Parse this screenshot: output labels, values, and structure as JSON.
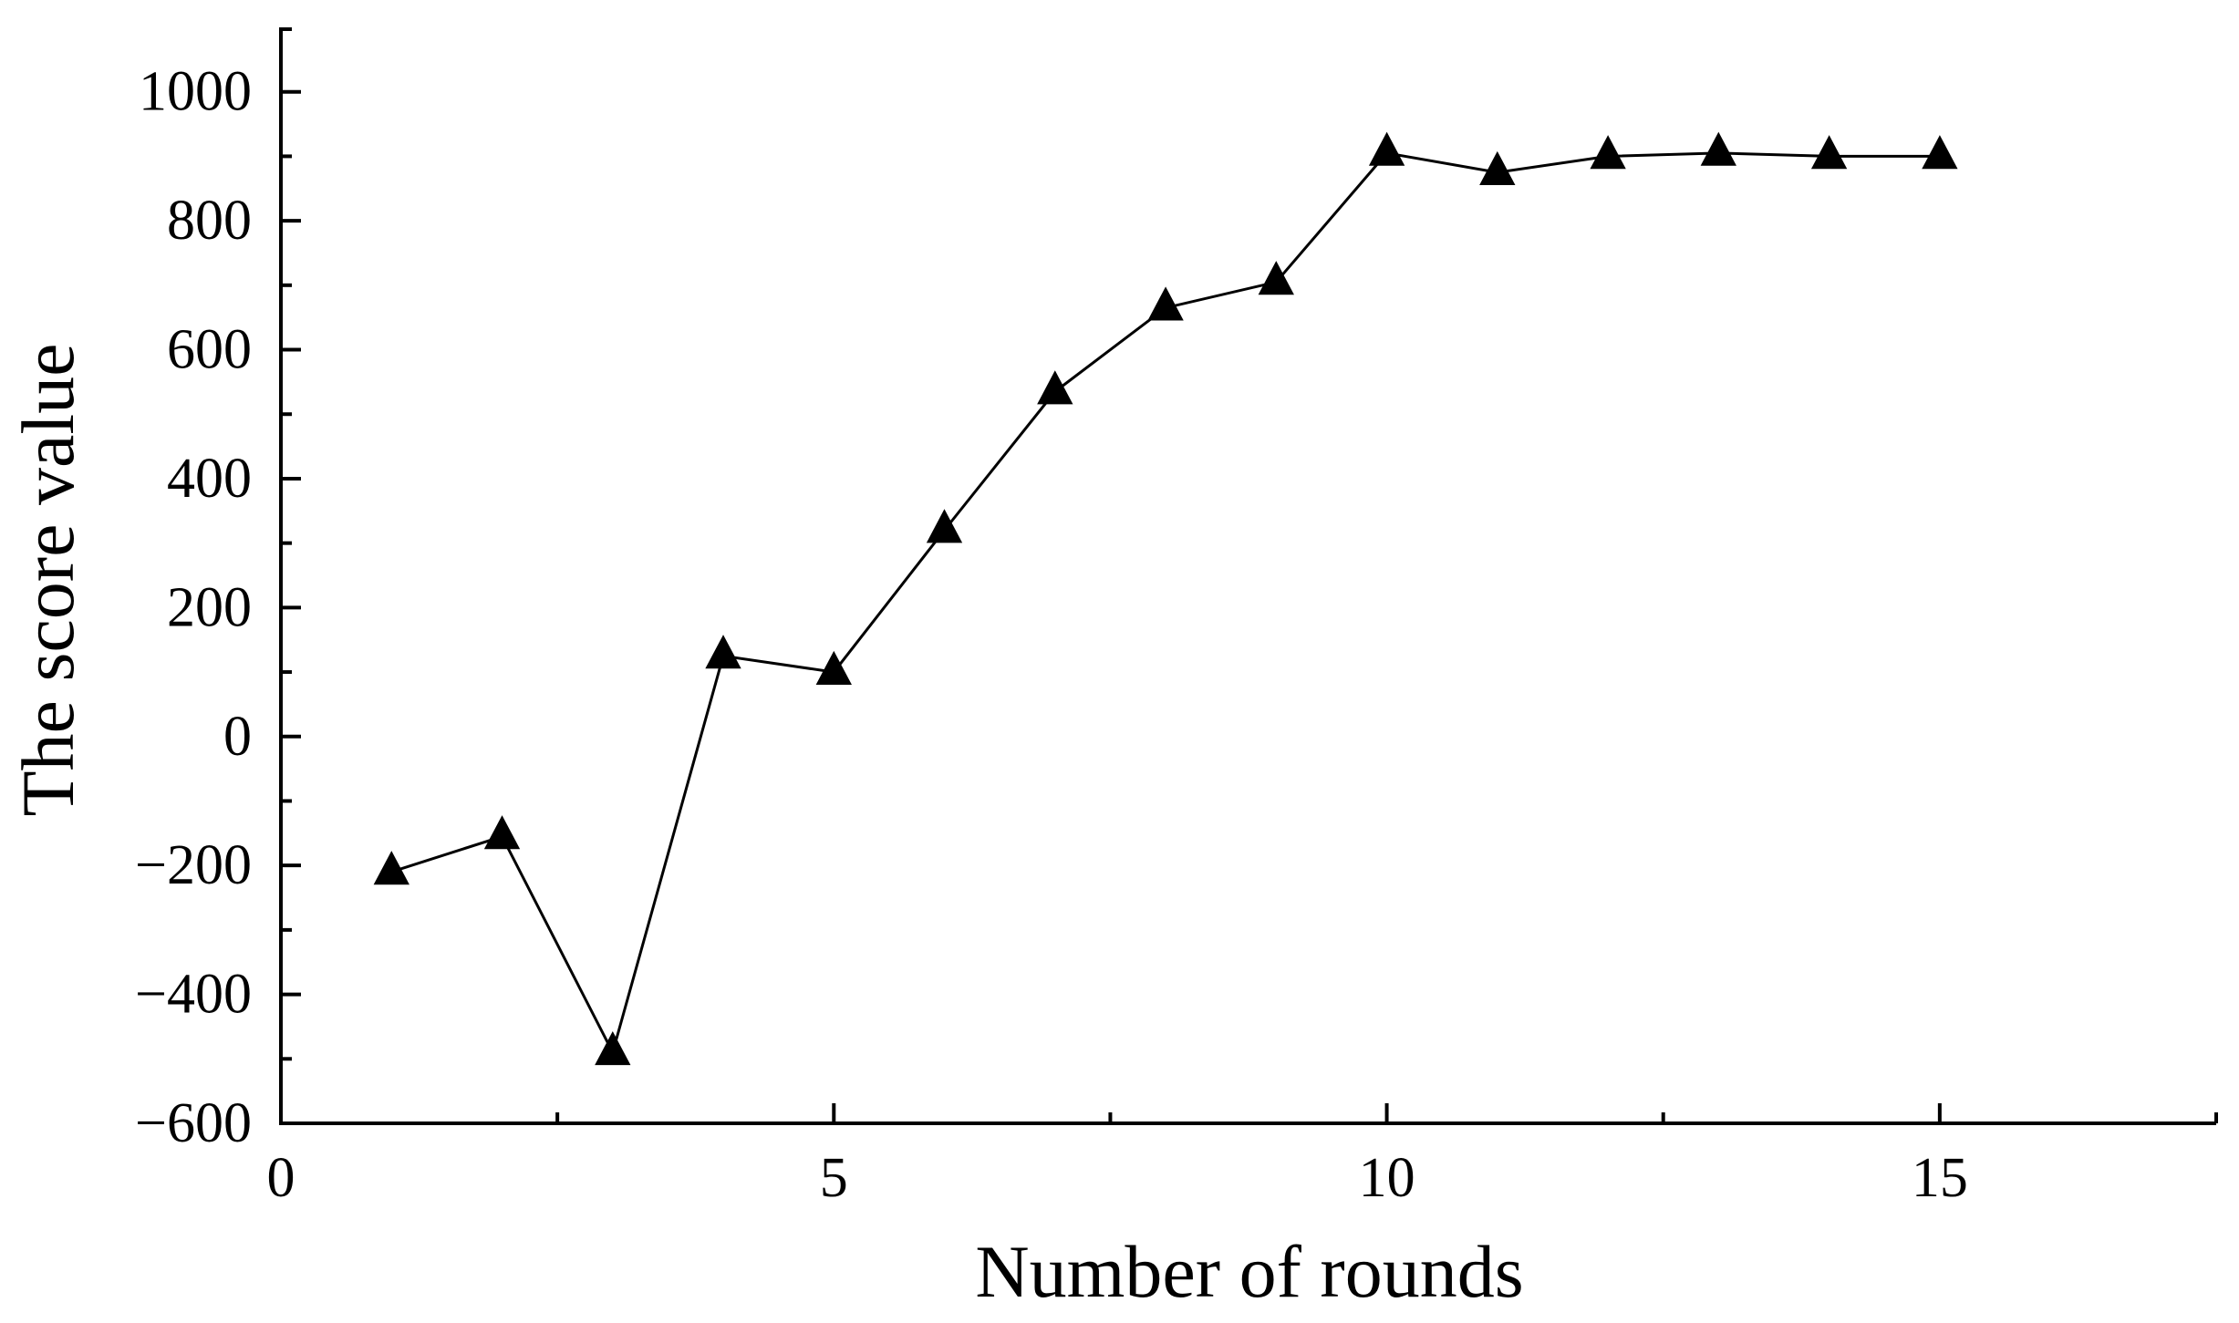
{
  "chart_data": {
    "type": "line",
    "title": "",
    "xlabel": "Number of rounds",
    "ylabel": "The score value",
    "xlim": [
      0,
      17.5
    ],
    "ylim": [
      -600,
      1100
    ],
    "x_ticks": [
      0,
      5,
      10,
      15
    ],
    "x_minor_ticks": [
      2.5,
      7.5,
      12.5,
      17.5
    ],
    "y_ticks": [
      -600,
      -400,
      -200,
      0,
      200,
      400,
      600,
      800,
      1000
    ],
    "y_minor_ticks": [
      -500,
      -300,
      -100,
      100,
      300,
      500,
      700,
      900
    ],
    "grid": false,
    "legend": "none",
    "marker": "triangle",
    "color": "#000000",
    "series": [
      {
        "x": [
          1,
          2,
          3,
          4,
          5,
          6,
          7,
          8,
          9,
          10,
          11,
          12,
          13,
          14,
          15
        ],
        "values": [
          -210,
          -155,
          -490,
          125,
          100,
          320,
          535,
          665,
          705,
          905,
          875,
          900,
          905,
          900,
          900
        ]
      }
    ]
  }
}
